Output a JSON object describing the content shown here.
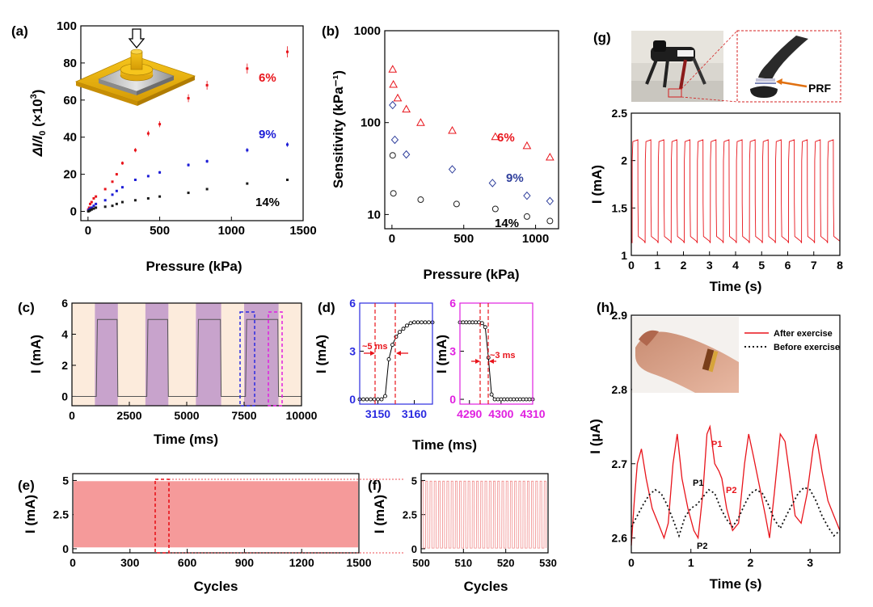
{
  "panels": {
    "a": {
      "label": "(a)",
      "xlabel": "Pressure (kPa)",
      "ylabel_main": "ΔI/I",
      "ylabel_sub": "0",
      "ylabel_tail": " (×10",
      "ylabel_exp": "3",
      "ylabel_close": ")"
    },
    "b": {
      "label": "(b)",
      "xlabel": "Pressure (kPa)",
      "ylabel": "Sensitivity (kPa⁻¹)"
    },
    "c": {
      "label": "(c)",
      "xlabel": "Time (ms)",
      "ylabel": "I (mA)"
    },
    "d": {
      "label": "(d)",
      "xlabel": "Time (ms)",
      "ylabel": "I (mA)",
      "ann_left": "~5 ms",
      "ann_right": "~3 ms"
    },
    "e": {
      "label": "(e)",
      "xlabel": "Cycles",
      "ylabel": "I (mA)"
    },
    "f": {
      "label": "(f)",
      "xlabel": "Cycles",
      "ylabel": "I (mA)"
    },
    "g": {
      "label": "(g)",
      "xlabel": "Time (s)",
      "ylabel": "I (mA)",
      "prf": "PRF"
    },
    "h": {
      "label": "(h)",
      "xlabel": "Time (s)",
      "ylabel": "I (μA)",
      "legend_after": "After exercise",
      "legend_before": "Before exercise",
      "p1_red": "P1",
      "p2_red": "P2",
      "p1_black": "P1",
      "p2_black": "P2"
    }
  },
  "chart_data": [
    {
      "id": "a",
      "type": "scatter",
      "xlabel": "Pressure (kPa)",
      "xlim": [
        -50,
        1500
      ],
      "ylim": [
        -5,
        100
      ],
      "xticks": [
        0,
        500,
        1000,
        1500
      ],
      "yticks": [
        0,
        20,
        40,
        60,
        80,
        100
      ],
      "series": [
        {
          "name": "6%",
          "color": "#e8141b",
          "x": [
            2,
            8,
            15,
            25,
            40,
            55,
            120,
            170,
            200,
            240,
            330,
            420,
            500,
            700,
            830,
            1110,
            1390
          ],
          "y": [
            1,
            2,
            4,
            5,
            7,
            8,
            12,
            16,
            20,
            26,
            33,
            42,
            47,
            61,
            68,
            77,
            86
          ]
        },
        {
          "name": "9%",
          "color": "#1d1dd6",
          "x": [
            2,
            8,
            15,
            25,
            40,
            55,
            120,
            170,
            200,
            240,
            330,
            420,
            500,
            700,
            830,
            1110,
            1390
          ],
          "y": [
            0.5,
            1,
            1.5,
            2,
            3,
            4,
            6,
            9,
            11,
            13,
            17,
            19,
            21,
            25,
            27,
            33,
            36
          ]
        },
        {
          "name": "14%",
          "color": "#1a1a1a",
          "x": [
            2,
            8,
            15,
            25,
            40,
            55,
            120,
            170,
            200,
            240,
            330,
            420,
            500,
            700,
            830,
            1110,
            1390
          ],
          "y": [
            0,
            0.3,
            0.6,
            1,
            1.5,
            2,
            2.5,
            3,
            4,
            5,
            6,
            7,
            8,
            10,
            12,
            15,
            17
          ]
        }
      ]
    },
    {
      "id": "b",
      "type": "scatter",
      "yscale": "log",
      "xlabel": "Pressure (kPa)",
      "ylabel": "Sensitivity (kPa⁻¹)",
      "xlim": [
        -50,
        1160
      ],
      "ylim": [
        7,
        1000
      ],
      "xticks": [
        0,
        500,
        1000
      ],
      "yticks": [
        10,
        100,
        1000
      ],
      "series": [
        {
          "name": "6%",
          "color": "#e8141b",
          "marker": "triangle",
          "x": [
            5,
            10,
            40,
            100,
            200,
            420,
            720,
            940,
            1100
          ],
          "y": [
            380,
            260,
            185,
            140,
            100,
            82,
            70,
            56,
            42
          ]
        },
        {
          "name": "9%",
          "color": "#2f3f9c",
          "marker": "diamond",
          "x": [
            5,
            20,
            100,
            420,
            700,
            940,
            1100
          ],
          "y": [
            155,
            65,
            45,
            31,
            22,
            16,
            14
          ]
        },
        {
          "name": "14%",
          "color": "#222222",
          "marker": "circle",
          "x": [
            5,
            10,
            200,
            450,
            720,
            940,
            1100
          ],
          "y": [
            44,
            17,
            14.5,
            13,
            11.5,
            9.5,
            8.5
          ]
        }
      ]
    },
    {
      "id": "c",
      "type": "line",
      "xlabel": "Time (ms)",
      "ylabel": "I (mA)",
      "xlim": [
        0,
        10000
      ],
      "ylim": [
        -0.6,
        6
      ],
      "xticks": [
        0,
        2500,
        5000,
        7500,
        10000
      ],
      "yticks": [
        0,
        2,
        4,
        6
      ],
      "on_intervals": [
        [
          1000,
          2000
        ],
        [
          3200,
          4200
        ],
        [
          5400,
          6500
        ],
        [
          7500,
          9000
        ]
      ],
      "high": 4.95,
      "low": 0.0
    },
    {
      "id": "d1",
      "type": "line",
      "xlim": [
        3145,
        3165
      ],
      "ylim": [
        -0.3,
        6
      ],
      "xticks": [
        3150,
        3160
      ],
      "yticks": [
        0,
        3,
        6
      ],
      "x": [
        3145,
        3146,
        3147,
        3148,
        3149,
        3150,
        3151,
        3152,
        3153,
        3154,
        3155,
        3156,
        3157,
        3158,
        3159,
        3160,
        3161,
        3162,
        3163,
        3164,
        3165
      ],
      "y": [
        0,
        0,
        0,
        0,
        0,
        0,
        0,
        0.2,
        2.5,
        3.4,
        3.9,
        4.2,
        4.4,
        4.6,
        4.75,
        4.8,
        4.8,
        4.8,
        4.8,
        4.8,
        4.8
      ]
    },
    {
      "id": "d2",
      "type": "line",
      "xlim": [
        4287,
        4310
      ],
      "ylim": [
        -0.3,
        6
      ],
      "xticks": [
        4290,
        4300,
        4310
      ],
      "yticks": [
        0,
        3,
        6
      ],
      "x": [
        4287,
        4288,
        4289,
        4290,
        4291,
        4292,
        4293,
        4294,
        4295,
        4296,
        4297,
        4298,
        4299,
        4300,
        4301,
        4302,
        4303,
        4304,
        4305,
        4306,
        4307,
        4308,
        4309,
        4310
      ],
      "y": [
        4.8,
        4.8,
        4.8,
        4.8,
        4.8,
        4.8,
        4.8,
        4.75,
        4.5,
        2.6,
        0.3,
        0,
        0,
        0,
        0,
        0,
        0,
        0,
        0,
        0,
        0,
        0,
        0,
        0
      ]
    },
    {
      "id": "e",
      "type": "area",
      "xlabel": "Cycles",
      "ylabel": "I (mA)",
      "xlim": [
        0,
        1500
      ],
      "ylim": [
        -0.3,
        5.5
      ],
      "xticks": [
        0,
        300,
        600,
        900,
        1200,
        1500
      ],
      "yticks": [
        0,
        2.5,
        5
      ],
      "high": 4.95,
      "low": 0.1
    },
    {
      "id": "f",
      "type": "line",
      "xlabel": "Cycles",
      "ylabel": "I (mA)",
      "xlim": [
        500,
        530
      ],
      "ylim": [
        -0.3,
        5.5
      ],
      "xticks": [
        500,
        510,
        520,
        530
      ],
      "yticks": [
        0,
        2.5,
        5
      ],
      "high": 4.95,
      "low": 0.05,
      "cycles": 30
    },
    {
      "id": "g",
      "type": "line",
      "xlabel": "Time (s)",
      "ylabel": "I (mA)",
      "xlim": [
        0,
        8
      ],
      "ylim": [
        1.0,
        2.5
      ],
      "xticks": [
        0,
        1,
        2,
        3,
        4,
        5,
        6,
        7,
        8
      ],
      "yticks": [
        1.0,
        1.5,
        2.0,
        2.5
      ],
      "period": 0.5,
      "high": 2.2,
      "low": 1.15
    },
    {
      "id": "h",
      "type": "line",
      "xlabel": "Time (s)",
      "ylabel": "I (μA)",
      "xlim": [
        0,
        3.5
      ],
      "ylim": [
        2.58,
        2.9
      ],
      "xticks": [
        0,
        1,
        2,
        3
      ],
      "yticks": [
        2.6,
        2.7,
        2.8,
        2.9
      ],
      "series": [
        {
          "name": "After exercise",
          "color": "#e8141b",
          "dash": false,
          "x": [
            0,
            0.05,
            0.1,
            0.17,
            0.25,
            0.35,
            0.45,
            0.55,
            0.62,
            0.7,
            0.77,
            0.85,
            0.95,
            1.05,
            1.12,
            1.2,
            1.27,
            1.32,
            1.4,
            1.47,
            1.52,
            1.6,
            1.7,
            1.8,
            1.9,
            1.97,
            2.05,
            2.15,
            2.25,
            2.32,
            2.4,
            2.5,
            2.58,
            2.65,
            2.75,
            2.85,
            2.95,
            3.05,
            3.1,
            3.2,
            3.3,
            3.4,
            3.5
          ],
          "y": [
            2.59,
            2.65,
            2.7,
            2.72,
            2.68,
            2.64,
            2.62,
            2.6,
            2.62,
            2.7,
            2.74,
            2.68,
            2.64,
            2.61,
            2.6,
            2.66,
            2.74,
            2.75,
            2.7,
            2.69,
            2.68,
            2.64,
            2.61,
            2.62,
            2.7,
            2.74,
            2.71,
            2.67,
            2.63,
            2.6,
            2.66,
            2.74,
            2.73,
            2.69,
            2.63,
            2.62,
            2.66,
            2.72,
            2.74,
            2.69,
            2.65,
            2.63,
            2.61
          ]
        },
        {
          "name": "Before exercise",
          "color": "#111111",
          "dash": true,
          "x": [
            0,
            0.1,
            0.2,
            0.3,
            0.4,
            0.5,
            0.6,
            0.7,
            0.8,
            0.9,
            1.0,
            1.1,
            1.2,
            1.3,
            1.4,
            1.5,
            1.6,
            1.7,
            1.8,
            1.9,
            2.0,
            2.1,
            2.2,
            2.3,
            2.4,
            2.5,
            2.6,
            2.7,
            2.8,
            2.9,
            3.0,
            3.1,
            3.2,
            3.3,
            3.4,
            3.5
          ],
          "y": [
            2.615,
            2.63,
            2.645,
            2.658,
            2.665,
            2.66,
            2.645,
            2.625,
            2.603,
            2.628,
            2.64,
            2.645,
            2.655,
            2.665,
            2.66,
            2.64,
            2.625,
            2.615,
            2.627,
            2.645,
            2.66,
            2.665,
            2.66,
            2.645,
            2.625,
            2.613,
            2.63,
            2.645,
            2.66,
            2.668,
            2.665,
            2.65,
            2.63,
            2.615,
            2.603,
            2.61
          ]
        }
      ]
    }
  ]
}
